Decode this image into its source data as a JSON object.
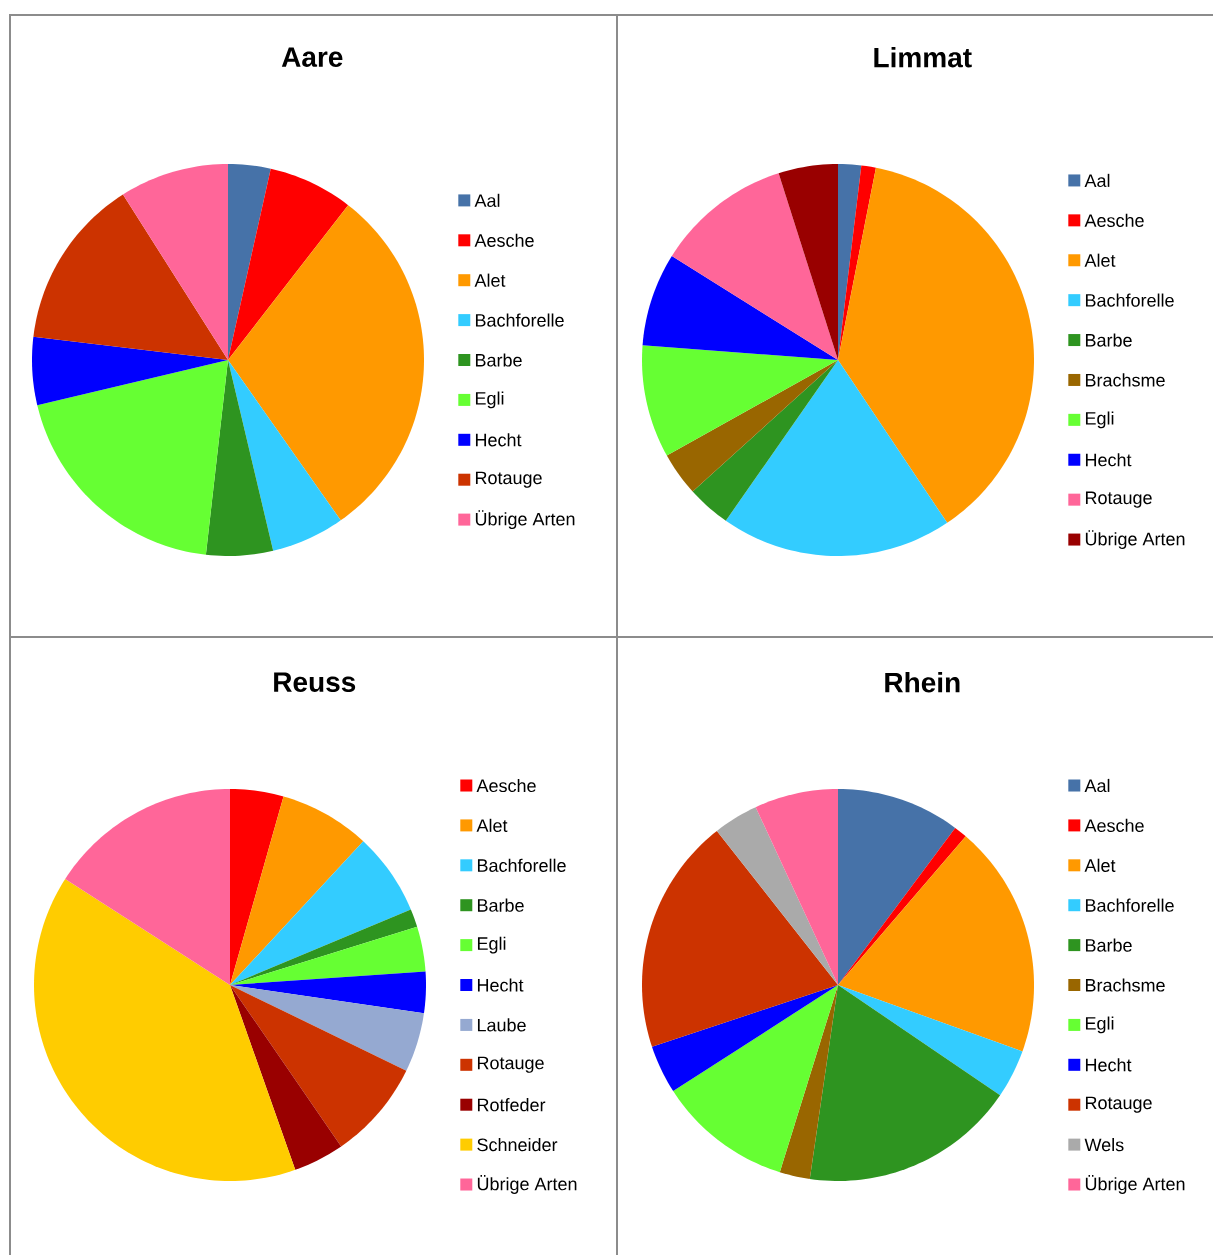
{
  "chart_data": [
    {
      "type": "pie",
      "title": "Aare",
      "legend": "right",
      "categories": [
        "Aal",
        "Aesche",
        "Alet",
        "Bachforelle",
        "Barbe",
        "Egli",
        "Hecht",
        "Rotauge",
        "Übrige Arten"
      ],
      "values": [
        3.5,
        7,
        29.75,
        6.05,
        5.5,
        19.5,
        5.6,
        14.1,
        9
      ],
      "colors": [
        "#4672a8",
        "#ff0000",
        "#ff9900",
        "#33ccff",
        "#2e9420",
        "#66ff33",
        "#0000ff",
        "#cc3300",
        "#ff6699"
      ]
    },
    {
      "type": "pie",
      "title": "Limmat",
      "legend": "right",
      "categories": [
        "Aal",
        "Aesche",
        "Alet",
        "Bachforelle",
        "Barbe",
        "Brachsme",
        "Egli",
        "Hecht",
        "Rotauge",
        "Übrige Arten"
      ],
      "values": [
        1.9,
        1.2,
        37.5,
        19.1,
        3.6,
        3.6,
        9.3,
        7.7,
        11.2,
        4.9
      ],
      "colors": [
        "#4672a8",
        "#ff0000",
        "#ff9900",
        "#33ccff",
        "#2e9420",
        "#996600",
        "#66ff33",
        "#0000ff",
        "#ff6699",
        "#990000"
      ]
    },
    {
      "type": "pie",
      "title": "Reuss",
      "legend": "right",
      "categories": [
        "Aesche",
        "Alet",
        "Bachforelle",
        "Barbe",
        "Egli",
        "Hecht",
        "Laube",
        "Rotauge",
        "Rotfeder",
        "Schneider",
        "Übrige Arten"
      ],
      "values": [
        4.4,
        7.5,
        6.8,
        1.5,
        3.7,
        3.4,
        4.9,
        8.2,
        4.2,
        39.5,
        15.9
      ],
      "colors": [
        "#ff0000",
        "#ff9900",
        "#33ccff",
        "#2e9420",
        "#66ff33",
        "#0000ff",
        "#95a9d1",
        "#cc3300",
        "#990000",
        "#ffcc00",
        "#ff6699"
      ]
    },
    {
      "type": "pie",
      "title": "Rhein",
      "legend": "right",
      "categories": [
        "Aal",
        "Aesche",
        "Alet",
        "Bachforelle",
        "Barbe",
        "Brachsme",
        "Egli",
        "Hecht",
        "Rotauge",
        "Wels",
        "Übrige Arten"
      ],
      "values": [
        10.2,
        1.1,
        19.2,
        4.0,
        17.8,
        2.5,
        11.1,
        4.0,
        19.5,
        3.7,
        6.9
      ],
      "colors": [
        "#4672a8",
        "#ff0000",
        "#ff9900",
        "#33ccff",
        "#2e9420",
        "#996600",
        "#66ff33",
        "#0000ff",
        "#cc3300",
        "#aaaaaa",
        "#ff6699"
      ]
    }
  ]
}
